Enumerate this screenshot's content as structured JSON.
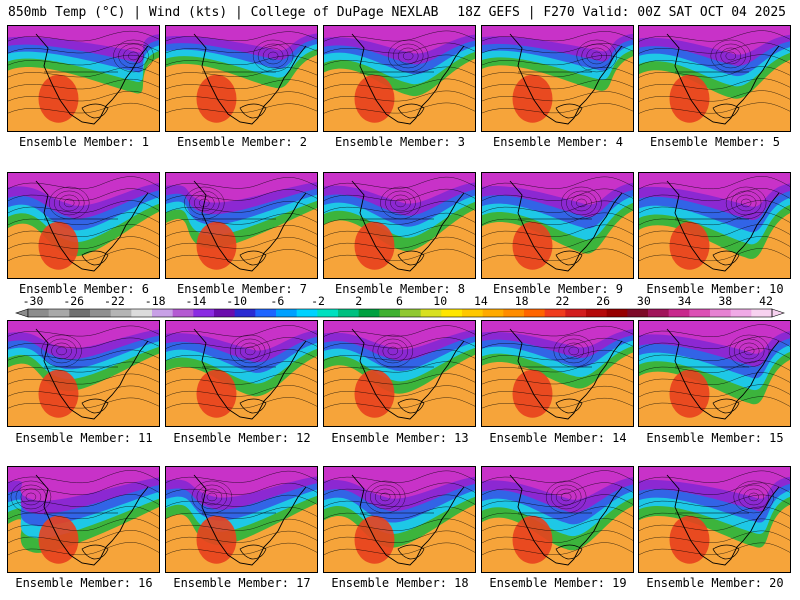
{
  "header": {
    "left": "850mb Temp (°C) | Wind (kts) | College of DuPage NEXLAB",
    "right": "18Z GEFS | F270 Valid: 00Z SAT OCT 04 2025"
  },
  "members": [
    {
      "label": "Ensemble Member: 1",
      "cold": 0.55,
      "low_lon": 0.82
    },
    {
      "label": "Ensemble Member: 2",
      "cold": 0.45,
      "low_lon": 0.7
    },
    {
      "label": "Ensemble Member: 3",
      "cold": 0.6,
      "low_lon": 0.55
    },
    {
      "label": "Ensemble Member: 4",
      "cold": 0.5,
      "low_lon": 0.75
    },
    {
      "label": "Ensemble Member: 5",
      "cold": 0.65,
      "low_lon": 0.6
    },
    {
      "label": "Ensemble Member: 6",
      "cold": 0.85,
      "low_lon": 0.4
    },
    {
      "label": "Ensemble Member: 7",
      "cold": 0.7,
      "low_lon": 0.25
    },
    {
      "label": "Ensemble Member: 8",
      "cold": 0.75,
      "low_lon": 0.5
    },
    {
      "label": "Ensemble Member: 9",
      "cold": 0.8,
      "low_lon": 0.65
    },
    {
      "label": "Ensemble Member: 10",
      "cold": 0.9,
      "low_lon": 0.7
    },
    {
      "label": "Ensemble Member: 11",
      "cold": 0.6,
      "low_lon": 0.35
    },
    {
      "label": "Ensemble Member: 12",
      "cold": 0.7,
      "low_lon": 0.55
    },
    {
      "label": "Ensemble Member: 13",
      "cold": 0.65,
      "low_lon": 0.45
    },
    {
      "label": "Ensemble Member: 14",
      "cold": 0.55,
      "low_lon": 0.6
    },
    {
      "label": "Ensemble Member: 15",
      "cold": 0.85,
      "low_lon": 0.72
    },
    {
      "label": "Ensemble Member: 16",
      "cold": 0.9,
      "low_lon": 0.15
    },
    {
      "label": "Ensemble Member: 17",
      "cold": 0.75,
      "low_lon": 0.3
    },
    {
      "label": "Ensemble Member: 18",
      "cold": 0.8,
      "low_lon": 0.4
    },
    {
      "label": "Ensemble Member: 19",
      "cold": 0.85,
      "low_lon": 0.55
    },
    {
      "label": "Ensemble Member: 20",
      "cold": 0.8,
      "low_lon": 0.75
    }
  ],
  "colorbar": {
    "ticks": [
      "-30",
      "-26",
      "-22",
      "-18",
      "-14",
      "-10",
      "-6",
      "-2",
      "2",
      "6",
      "10",
      "14",
      "18",
      "22",
      "26",
      "30",
      "34",
      "38",
      "42"
    ],
    "colors": [
      "#8c8c8c",
      "#a8a8a8",
      "#707070",
      "#909090",
      "#b4b4b4",
      "#dcdcdc",
      "#c8a0e6",
      "#b45ad2",
      "#8a2be2",
      "#6a0dad",
      "#2a2ad2",
      "#1e64ff",
      "#00a0ff",
      "#00d2ff",
      "#00e0c0",
      "#00c080",
      "#00a040",
      "#40b030",
      "#90c830",
      "#d8e020",
      "#ffe600",
      "#ffc800",
      "#ffaa00",
      "#ff8c00",
      "#ff6400",
      "#f03c1e",
      "#d21e1e",
      "#b40a0a",
      "#960000",
      "#7d0a28",
      "#a0145a",
      "#c8288c",
      "#dc50b4",
      "#e682d2",
      "#f0aae6",
      "#f8d2f0"
    ]
  },
  "palette": {
    "bg_warm": "#f6a43a",
    "hot": "#e8401e",
    "green": "#3cb43c",
    "cyan": "#1ec8e6",
    "blue": "#3264e6",
    "purple": "#8c28d2",
    "magenta": "#c832c8",
    "lines": "#000000"
  }
}
